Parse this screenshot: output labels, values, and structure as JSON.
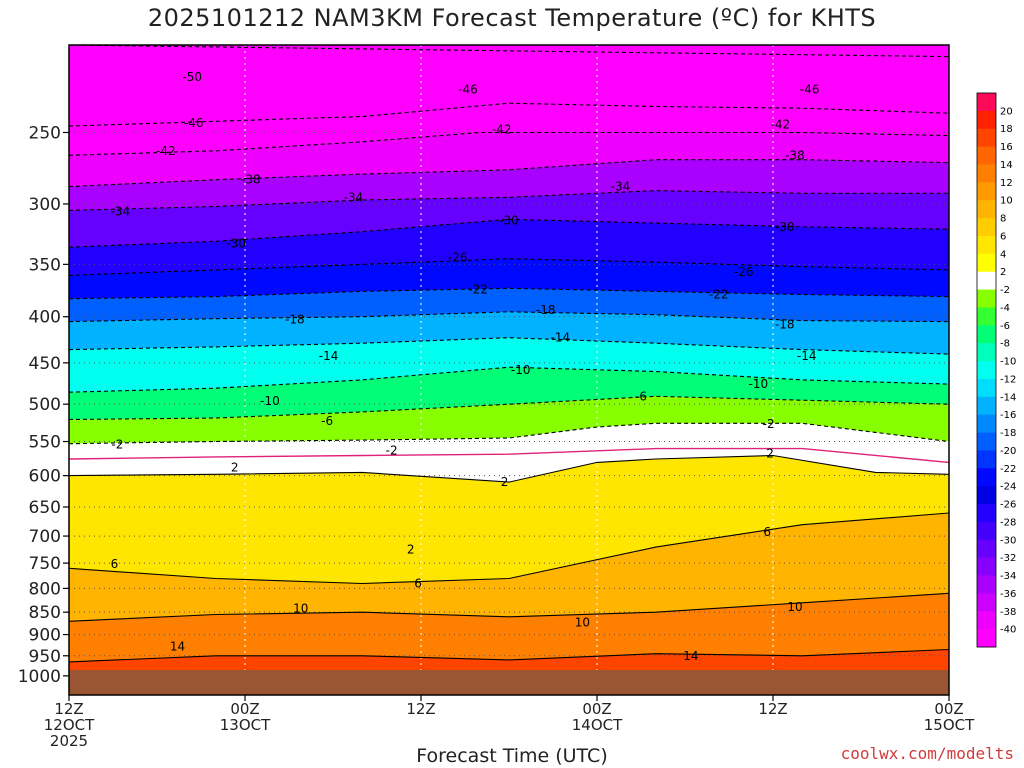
{
  "colors": {
    "ground": "#9a5533",
    "freezing_line": "#e0217a"
  },
  "chart_data": {
    "type": "heatmap",
    "title": "2025101212 NAM3KM Forecast Temperature (ºC) for KHTS",
    "xlabel": "Forecast Time (UTC)",
    "credit": "coolwx.com/modelts",
    "y_axis": {
      "scale": "log-pressure",
      "reversed": true,
      "range_hpa": [
        1050,
        200
      ],
      "ticks": [
        250,
        300,
        350,
        400,
        450,
        500,
        550,
        600,
        650,
        700,
        750,
        800,
        850,
        900,
        950,
        1000
      ]
    },
    "x_axis": {
      "range_hours": [
        0,
        60
      ],
      "ticks": [
        {
          "hour": 0,
          "l1": "12Z",
          "l2": "12OCT",
          "l3": "2025"
        },
        {
          "hour": 12,
          "l1": "00Z",
          "l2": "13OCT",
          "l3": ""
        },
        {
          "hour": 24,
          "l1": "12Z",
          "l2": "",
          "l3": ""
        },
        {
          "hour": 36,
          "l1": "00Z",
          "l2": "14OCT",
          "l3": ""
        },
        {
          "hour": 48,
          "l1": "12Z",
          "l2": "",
          "l3": ""
        },
        {
          "hour": 60,
          "l1": "00Z",
          "l2": "15OCT",
          "l3": ""
        }
      ]
    },
    "colorbar": {
      "labels": [
        "20",
        "18",
        "16",
        "14",
        "12",
        "10",
        "8",
        "6",
        "4",
        "2",
        "-2",
        "-4",
        "-6",
        "-8",
        "-10",
        "-12",
        "-14",
        "-16",
        "-18",
        "-20",
        "-22",
        "-24",
        "-26",
        "-28",
        "-30",
        "-32",
        "-34",
        "-36",
        "-38",
        "-40"
      ],
      "colors": [
        "#ff0a5a",
        "#ff2200",
        "#ff4400",
        "#ff6600",
        "#ff8000",
        "#ff9a00",
        "#ffb400",
        "#ffcd00",
        "#ffe600",
        "#ffff00",
        "#ffffff",
        "#88ff00",
        "#33ff33",
        "#00ff77",
        "#00ffbb",
        "#00ffee",
        "#00ddff",
        "#00b2ff",
        "#0088ff",
        "#0060ff",
        "#0034ff",
        "#0008ff",
        "#0000e5",
        "#2200ff",
        "#4400ff",
        "#6600ff",
        "#8800ff",
        "#aa00ff",
        "#cc00ff",
        "#ee00ff",
        "#ff00ff"
      ]
    },
    "ground_top_hpa": 985,
    "isotherms": [
      {
        "t": 20,
        "dashed": false,
        "pts": [
          [
            0,
            1000
          ],
          [
            60,
            1000
          ]
        ]
      },
      {
        "t": -50,
        "dashed": true,
        "pts": [
          [
            0,
            200
          ],
          [
            20,
            202
          ],
          [
            40,
            204
          ],
          [
            60,
            206
          ]
        ]
      },
      {
        "t": -46,
        "dashed": true,
        "pts": [
          [
            0,
            246
          ],
          [
            10,
            243
          ],
          [
            20,
            240
          ],
          [
            30,
            232
          ],
          [
            40,
            234
          ],
          [
            50,
            235
          ],
          [
            60,
            238
          ]
        ]
      },
      {
        "t": -42,
        "dashed": true,
        "pts": [
          [
            0,
            265
          ],
          [
            10,
            262
          ],
          [
            20,
            256
          ],
          [
            28,
            250
          ],
          [
            40,
            250
          ],
          [
            50,
            250
          ],
          [
            60,
            252
          ]
        ]
      },
      {
        "t": -38,
        "dashed": true,
        "pts": [
          [
            0,
            287
          ],
          [
            10,
            282
          ],
          [
            20,
            278
          ],
          [
            30,
            275
          ],
          [
            40,
            268
          ],
          [
            50,
            268
          ],
          [
            60,
            270
          ]
        ]
      },
      {
        "t": -34,
        "dashed": true,
        "pts": [
          [
            0,
            305
          ],
          [
            10,
            302
          ],
          [
            20,
            297
          ],
          [
            30,
            295
          ],
          [
            40,
            290
          ],
          [
            50,
            292
          ],
          [
            60,
            292
          ]
        ]
      },
      {
        "t": -30,
        "dashed": true,
        "pts": [
          [
            0,
            335
          ],
          [
            10,
            330
          ],
          [
            20,
            322
          ],
          [
            30,
            312
          ],
          [
            40,
            315
          ],
          [
            50,
            318
          ],
          [
            60,
            320
          ]
        ]
      },
      {
        "t": -26,
        "dashed": true,
        "pts": [
          [
            0,
            360
          ],
          [
            10,
            355
          ],
          [
            20,
            350
          ],
          [
            30,
            345
          ],
          [
            40,
            348
          ],
          [
            50,
            352
          ],
          [
            60,
            355
          ]
        ]
      },
      {
        "t": -22,
        "dashed": true,
        "pts": [
          [
            0,
            382
          ],
          [
            10,
            380
          ],
          [
            20,
            375
          ],
          [
            30,
            372
          ],
          [
            40,
            375
          ],
          [
            50,
            378
          ],
          [
            60,
            380
          ]
        ]
      },
      {
        "t": -18,
        "dashed": true,
        "pts": [
          [
            0,
            405
          ],
          [
            10,
            402
          ],
          [
            20,
            400
          ],
          [
            30,
            395
          ],
          [
            40,
            398
          ],
          [
            50,
            404
          ],
          [
            60,
            405
          ]
        ]
      },
      {
        "t": -14,
        "dashed": true,
        "pts": [
          [
            0,
            435
          ],
          [
            10,
            432
          ],
          [
            20,
            428
          ],
          [
            30,
            422
          ],
          [
            40,
            428
          ],
          [
            50,
            435
          ],
          [
            60,
            440
          ]
        ]
      },
      {
        "t": -10,
        "dashed": true,
        "pts": [
          [
            0,
            485
          ],
          [
            10,
            480
          ],
          [
            20,
            470
          ],
          [
            30,
            455
          ],
          [
            40,
            460
          ],
          [
            50,
            470
          ],
          [
            60,
            475
          ]
        ]
      },
      {
        "t": -6,
        "dashed": true,
        "pts": [
          [
            0,
            520
          ],
          [
            10,
            518
          ],
          [
            20,
            510
          ],
          [
            30,
            500
          ],
          [
            40,
            490
          ],
          [
            50,
            495
          ],
          [
            60,
            500
          ]
        ]
      },
      {
        "t": -2,
        "dashed": true,
        "pts": [
          [
            0,
            553
          ],
          [
            10,
            550
          ],
          [
            20,
            548
          ],
          [
            30,
            545
          ],
          [
            36,
            530
          ],
          [
            40,
            525
          ],
          [
            50,
            525
          ],
          [
            60,
            550
          ]
        ]
      },
      {
        "t": 0,
        "dashed": false,
        "pts": [
          [
            0,
            575
          ],
          [
            10,
            572
          ],
          [
            20,
            570
          ],
          [
            30,
            568
          ],
          [
            40,
            560
          ],
          [
            50,
            560
          ],
          [
            60,
            580
          ]
        ]
      },
      {
        "t": 2,
        "dashed": false,
        "pts": [
          [
            0,
            600
          ],
          [
            10,
            598
          ],
          [
            20,
            595
          ],
          [
            30,
            610
          ],
          [
            36,
            580
          ],
          [
            40,
            575
          ],
          [
            48,
            570
          ],
          [
            55,
            595
          ],
          [
            60,
            598
          ]
        ]
      },
      {
        "t": 6,
        "dashed": false,
        "pts": [
          [
            0,
            760
          ],
          [
            10,
            780
          ],
          [
            20,
            790
          ],
          [
            30,
            780
          ],
          [
            40,
            720
          ],
          [
            50,
            680
          ],
          [
            60,
            660
          ]
        ]
      },
      {
        "t": 10,
        "dashed": false,
        "pts": [
          [
            0,
            870
          ],
          [
            10,
            855
          ],
          [
            20,
            850
          ],
          [
            30,
            860
          ],
          [
            40,
            850
          ],
          [
            50,
            830
          ],
          [
            60,
            810
          ]
        ]
      },
      {
        "t": 14,
        "dashed": false,
        "pts": [
          [
            0,
            965
          ],
          [
            10,
            950
          ],
          [
            20,
            950
          ],
          [
            30,
            960
          ],
          [
            40,
            945
          ],
          [
            50,
            950
          ],
          [
            60,
            935
          ]
        ]
      }
    ],
    "contour_labels": [
      {
        "text": "-50",
        "h": 8.4,
        "p": 217
      },
      {
        "text": "-46",
        "h": 27.2,
        "p": 224
      },
      {
        "text": "-46",
        "h": 50.5,
        "p": 224
      },
      {
        "text": "-46",
        "h": 8.5,
        "p": 244
      },
      {
        "text": "-42",
        "h": 29.5,
        "p": 248
      },
      {
        "text": "-42",
        "h": 48.5,
        "p": 245
      },
      {
        "text": "-42",
        "h": 6.6,
        "p": 262
      },
      {
        "text": "-38",
        "h": 49.5,
        "p": 265
      },
      {
        "text": "-38",
        "h": 12.4,
        "p": 282
      },
      {
        "text": "-34",
        "h": 37.6,
        "p": 287
      },
      {
        "text": "-34",
        "h": 19.4,
        "p": 295
      },
      {
        "text": "-34",
        "h": 3.5,
        "p": 306
      },
      {
        "text": "-30",
        "h": 30.0,
        "p": 313
      },
      {
        "text": "-30",
        "h": 48.8,
        "p": 318
      },
      {
        "text": "-30",
        "h": 11.4,
        "p": 332
      },
      {
        "text": "-26",
        "h": 26.5,
        "p": 344
      },
      {
        "text": "-26",
        "h": 46.0,
        "p": 357
      },
      {
        "text": "-22",
        "h": 27.9,
        "p": 373
      },
      {
        "text": "-22",
        "h": 44.3,
        "p": 378
      },
      {
        "text": "-18",
        "h": 32.5,
        "p": 393
      },
      {
        "text": "-18",
        "h": 15.4,
        "p": 403
      },
      {
        "text": "-18",
        "h": 48.8,
        "p": 408
      },
      {
        "text": "-14",
        "h": 33.5,
        "p": 422
      },
      {
        "text": "-14",
        "h": 17.7,
        "p": 442
      },
      {
        "text": "-14",
        "h": 50.3,
        "p": 442
      },
      {
        "text": "-10",
        "h": 30.8,
        "p": 458
      },
      {
        "text": "-10",
        "h": 47.0,
        "p": 475
      },
      {
        "text": "-10",
        "h": 13.7,
        "p": 496
      },
      {
        "text": "-6",
        "h": 39.0,
        "p": 490
      },
      {
        "text": "-6",
        "h": 17.6,
        "p": 522
      },
      {
        "text": "-2",
        "h": 47.7,
        "p": 526
      },
      {
        "text": "-2",
        "h": 3.3,
        "p": 554
      },
      {
        "text": "-2",
        "h": 22.0,
        "p": 563
      },
      {
        "text": "2",
        "h": 47.8,
        "p": 567
      },
      {
        "text": "2",
        "h": 11.3,
        "p": 588
      },
      {
        "text": "2",
        "h": 29.7,
        "p": 610
      },
      {
        "text": "2",
        "h": 23.3,
        "p": 724
      },
      {
        "text": "6",
        "h": 47.6,
        "p": 693
      },
      {
        "text": "6",
        "h": 3.1,
        "p": 752
      },
      {
        "text": "6",
        "h": 23.8,
        "p": 790
      },
      {
        "text": "10",
        "h": 15.8,
        "p": 842
      },
      {
        "text": "10",
        "h": 49.5,
        "p": 839
      },
      {
        "text": "10",
        "h": 35.0,
        "p": 873
      },
      {
        "text": "14",
        "h": 7.4,
        "p": 928
      },
      {
        "text": "14",
        "h": 42.4,
        "p": 950
      }
    ]
  }
}
